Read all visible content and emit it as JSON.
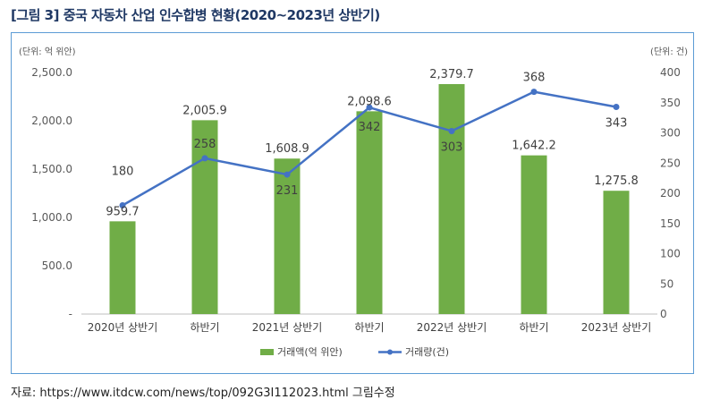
{
  "figure_title": "[그림 3] 중국 자동차 산업 인수합병 현황(2020~2023년 상반기)",
  "source_note": "자료: https://www.itdcw.com/news/top/092G3I112023.html 그림수정",
  "colors": {
    "bar": "#70ad47",
    "line": "#4472c4",
    "frame": "#5b9bd5",
    "title": "#1f3864"
  },
  "chart_data": {
    "type": "bar",
    "categories": [
      "2020년 상반기",
      "하반기",
      "2021년 상반기",
      "하반기",
      "2022년 상반기",
      "하반기",
      "2023년 상반기"
    ],
    "series": [
      {
        "name": "거래액(억 위안)",
        "type": "bar",
        "axis": "left",
        "values": [
          959.7,
          2005.9,
          1608.9,
          2098.6,
          2379.7,
          1642.2,
          1275.8
        ],
        "labels": [
          "959.7",
          "2,005.9",
          "1,608.9",
          "2,098.6",
          "2,379.7",
          "1,642.2",
          "1,275.8"
        ]
      },
      {
        "name": "거래량(건)",
        "type": "line",
        "axis": "right",
        "values": [
          180,
          258,
          231,
          342,
          303,
          368,
          343
        ],
        "labels": [
          "180",
          "258",
          "231",
          "342",
          "303",
          "368",
          "343"
        ]
      }
    ],
    "left_axis": {
      "unit_label": "(단위: 억 위안)",
      "ylim": [
        0,
        2500
      ],
      "ticks": [
        0,
        500,
        1000,
        1500,
        2000,
        2500
      ],
      "tick_labels": [
        "-",
        "500.0",
        "1,000.0",
        "1,500.0",
        "2,000.0",
        "2,500.0"
      ]
    },
    "right_axis": {
      "unit_label": "(단위: 건)",
      "ylim": [
        0,
        400
      ],
      "ticks": [
        0,
        50,
        100,
        150,
        200,
        250,
        300,
        350,
        400
      ],
      "tick_labels": [
        "0",
        "50",
        "100",
        "150",
        "200",
        "250",
        "300",
        "350",
        "400"
      ]
    },
    "grid": false,
    "legend_position": "bottom"
  }
}
